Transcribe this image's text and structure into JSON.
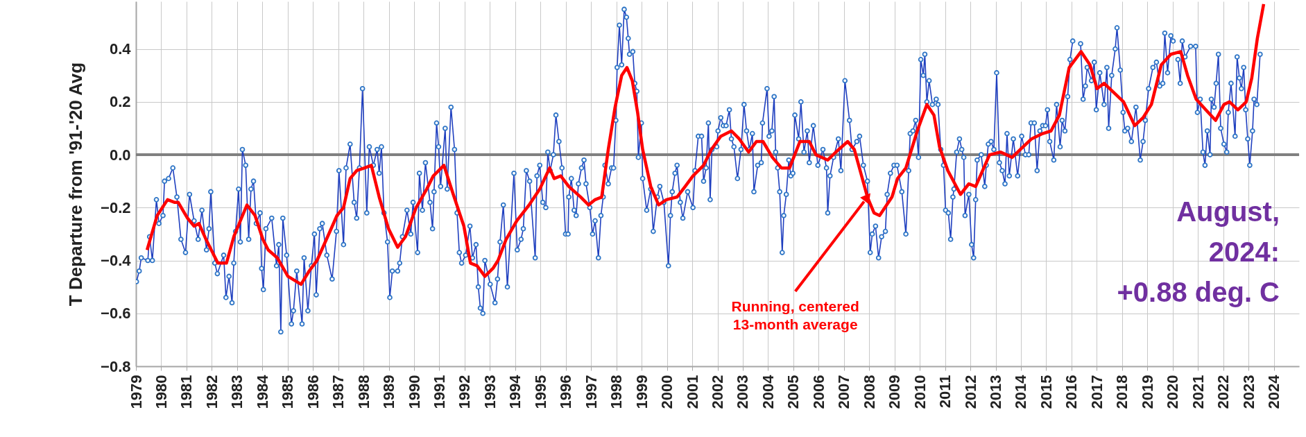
{
  "chart_data": {
    "type": "line",
    "ylabel": "T Departure from '91-'20 Avg",
    "xlim": [
      1979,
      2025
    ],
    "ylim": [
      -0.8,
      0.58
    ],
    "xticks": [
      1979,
      1980,
      1981,
      1982,
      1983,
      1984,
      1985,
      1986,
      1987,
      1988,
      1989,
      1990,
      1991,
      1992,
      1993,
      1994,
      1995,
      1996,
      1997,
      1998,
      1999,
      2000,
      2001,
      2002,
      2003,
      2004,
      2005,
      2006,
      2007,
      2008,
      2009,
      2010,
      2011,
      2012,
      2013,
      2014,
      2015,
      2016,
      2017,
      2018,
      2019,
      2020,
      2021,
      2022,
      2023,
      2024
    ],
    "yticks": [
      -0.8,
      -0.6,
      -0.4,
      -0.2,
      {
        "value": 0,
        "label": "0.0"
      },
      0.2,
      0.4
    ],
    "grid": true,
    "ref_lines": [
      {
        "axis": "y",
        "value": 0,
        "color": "#808080"
      }
    ],
    "annotations": [
      {
        "text": "Running, centered\n13-month average",
        "x": 2007.93,
        "y": -0.16
      },
      "August,\n2024:\n+0.88 deg. C"
    ],
    "series": [
      {
        "color": "#1f3fbf",
        "marker": "circle",
        "x": [
          1979.02,
          1979.13,
          1979.21,
          1979.47,
          1979.54,
          1979.65,
          1979.81,
          1979.91,
          1980.07,
          1980.13,
          1980.29,
          1980.46,
          1980.62,
          1980.78,
          1980.96,
          1981.12,
          1981.3,
          1981.46,
          1981.61,
          1981.79,
          1981.89,
          1981.96,
          1982.12,
          1982.22,
          1982.47,
          1982.56,
          1982.68,
          1982.8,
          1982.87,
          1982.94,
          1983.06,
          1983.13,
          1983.21,
          1983.34,
          1983.46,
          1983.55,
          1983.65,
          1983.76,
          1983.91,
          1983.97,
          1984.04,
          1984.14,
          1984.37,
          1984.56,
          1984.65,
          1984.73,
          1984.81,
          1984.96,
          1985.15,
          1985.23,
          1985.36,
          1985.57,
          1985.65,
          1985.8,
          1985.94,
          1986.06,
          1986.13,
          1986.27,
          1986.37,
          1986.55,
          1986.76,
          1986.93,
          1987.03,
          1987.21,
          1987.31,
          1987.47,
          1987.63,
          1987.73,
          1987.84,
          1987.96,
          1988.13,
          1988.23,
          1988.39,
          1988.54,
          1988.62,
          1988.71,
          1988.81,
          1988.95,
          1989.04,
          1989.14,
          1989.35,
          1989.43,
          1989.54,
          1989.72,
          1989.87,
          1989.96,
          1990.14,
          1990.21,
          1990.33,
          1990.45,
          1990.63,
          1990.73,
          1990.79,
          1990.89,
          1990.97,
          1991.05,
          1991.23,
          1991.31,
          1991.46,
          1991.6,
          1991.7,
          1991.79,
          1991.88,
          1992.04,
          1992.21,
          1992.31,
          1992.45,
          1992.54,
          1992.62,
          1992.72,
          1992.8,
          1993.01,
          1993.2,
          1993.3,
          1993.4,
          1993.53,
          1993.69,
          1993.95,
          1994.08,
          1994.23,
          1994.32,
          1994.44,
          1994.57,
          1994.79,
          1994.86,
          1994.97,
          1995.09,
          1995.21,
          1995.29,
          1995.38,
          1995.51,
          1995.61,
          1995.73,
          1995.85,
          1995.99,
          1996.09,
          1996.12,
          1996.22,
          1996.33,
          1996.41,
          1996.5,
          1996.62,
          1996.72,
          1996.8,
          1996.95,
          1997.06,
          1997.16,
          1997.29,
          1997.39,
          1997.48,
          1997.55,
          1997.68,
          1997.81,
          1997.89,
          1997.98,
          1998.03,
          1998.12,
          1998.21,
          1998.31,
          1998.4,
          1998.47,
          1998.52,
          1998.65,
          1998.73,
          1998.81,
          1998.87,
          1998.99,
          1999.04,
          1999.2,
          1999.36,
          1999.46,
          1999.62,
          1999.72,
          1999.88,
          2000.06,
          2000.14,
          2000.21,
          2000.32,
          2000.4,
          2000.53,
          2000.63,
          2000.82,
          2001.03,
          2001.11,
          2001.24,
          2001.37,
          2001.45,
          2001.55,
          2001.64,
          2001.71,
          2001.78,
          2001.97,
          2002.02,
          2002.13,
          2002.23,
          2002.34,
          2002.47,
          2002.55,
          2002.65,
          2002.79,
          2002.93,
          2003.05,
          2003.15,
          2003.26,
          2003.38,
          2003.44,
          2003.59,
          2003.73,
          2003.78,
          2003.96,
          2004.04,
          2004.15,
          2004.24,
          2004.3,
          2004.38,
          2004.46,
          2004.56,
          2004.62,
          2004.72,
          2004.82,
          2004.9,
          2004.98,
          2005.06,
          2005.21,
          2005.3,
          2005.42,
          2005.55,
          2005.63,
          2005.79,
          2005.97,
          2006.17,
          2006.31,
          2006.36,
          2006.45,
          2006.59,
          2006.78,
          2006.88,
          2007.04,
          2007.22,
          2007.32,
          2007.51,
          2007.62,
          2007.77,
          2007.93,
          2008.04,
          2008.12,
          2008.25,
          2008.37,
          2008.49,
          2008.64,
          2008.71,
          2008.84,
          2008.98,
          2009.1,
          2009.29,
          2009.45,
          2009.56,
          2009.62,
          2009.73,
          2009.84,
          2009.95,
          2010.04,
          2010.14,
          2010.2,
          2010.28,
          2010.37,
          2010.5,
          2010.65,
          2010.72,
          2010.83,
          2010.94,
          2011.02,
          2011.13,
          2011.22,
          2011.31,
          2011.35,
          2011.46,
          2011.57,
          2011.66,
          2011.74,
          2011.79,
          2011.94,
          2012.05,
          2012.13,
          2012.21,
          2012.27,
          2012.43,
          2012.57,
          2012.63,
          2012.71,
          2012.82,
          2012.93,
          2013.04,
          2013.15,
          2013.26,
          2013.37,
          2013.45,
          2013.54,
          2013.7,
          2013.87,
          2014.03,
          2014.18,
          2014.31,
          2014.4,
          2014.53,
          2014.64,
          2014.75,
          2014.86,
          2014.97,
          2015.05,
          2015.14,
          2015.3,
          2015.41,
          2015.55,
          2015.63,
          2015.74,
          2015.85,
          2015.94,
          2016.05,
          2016.2,
          2016.36,
          2016.46,
          2016.55,
          2016.62,
          2016.79,
          2016.9,
          2016.98,
          2017.12,
          2017.29,
          2017.4,
          2017.47,
          2017.59,
          2017.73,
          2017.8,
          2017.93,
          2018.04,
          2018.11,
          2018.22,
          2018.37,
          2018.55,
          2018.72,
          2018.83,
          2018.92,
          2019.05,
          2019.22,
          2019.36,
          2019.49,
          2019.61,
          2019.69,
          2019.8,
          2019.93,
          2020.02,
          2020.1,
          2020.21,
          2020.3,
          2020.38,
          2020.49,
          2020.71,
          2020.91,
          2020.98,
          2021.09,
          2021.2,
          2021.28,
          2021.37,
          2021.48,
          2021.53,
          2021.64,
          2021.72,
          2021.81,
          2021.9,
          2022.03,
          2022.14,
          2022.2,
          2022.31,
          2022.47,
          2022.55,
          2022.64,
          2022.72,
          2022.81,
          2022.89,
          2022.97,
          2023.05,
          2023.16,
          2023.22,
          2023.33,
          2023.46
        ],
        "values": [
          -0.48,
          -0.44,
          -0.39,
          -0.4,
          -0.31,
          -0.4,
          -0.17,
          -0.26,
          -0.23,
          -0.1,
          -0.09,
          -0.05,
          -0.16,
          -0.32,
          -0.37,
          -0.15,
          -0.25,
          -0.32,
          -0.21,
          -0.36,
          -0.28,
          -0.14,
          -0.41,
          -0.45,
          -0.38,
          -0.54,
          -0.46,
          -0.56,
          -0.41,
          -0.29,
          -0.13,
          -0.33,
          0.02,
          -0.04,
          -0.32,
          -0.13,
          -0.1,
          -0.26,
          -0.22,
          -0.43,
          -0.51,
          -0.28,
          -0.24,
          -0.42,
          -0.34,
          -0.67,
          -0.24,
          -0.38,
          -0.64,
          -0.59,
          -0.44,
          -0.64,
          -0.39,
          -0.59,
          -0.42,
          -0.3,
          -0.53,
          -0.28,
          -0.26,
          -0.38,
          -0.47,
          -0.29,
          -0.06,
          -0.34,
          -0.05,
          0.04,
          -0.18,
          -0.24,
          -0.05,
          0.25,
          -0.22,
          0.03,
          -0.04,
          0.02,
          -0.07,
          0.03,
          -0.22,
          -0.33,
          -0.54,
          -0.44,
          -0.44,
          -0.41,
          -0.31,
          -0.21,
          -0.3,
          -0.18,
          -0.37,
          -0.07,
          -0.21,
          -0.03,
          -0.18,
          -0.28,
          -0.14,
          0.12,
          0.03,
          -0.12,
          0.1,
          -0.13,
          0.18,
          0.02,
          -0.22,
          -0.37,
          -0.41,
          -0.38,
          -0.27,
          -0.39,
          -0.34,
          -0.5,
          -0.58,
          -0.6,
          -0.4,
          -0.49,
          -0.56,
          -0.47,
          -0.33,
          -0.19,
          -0.5,
          -0.07,
          -0.36,
          -0.32,
          -0.28,
          -0.06,
          -0.1,
          -0.39,
          -0.08,
          -0.04,
          -0.18,
          -0.2,
          0.01,
          -0.06,
          0.0,
          0.15,
          0.05,
          -0.05,
          -0.3,
          -0.3,
          -0.16,
          -0.09,
          -0.21,
          -0.23,
          -0.11,
          -0.05,
          -0.02,
          -0.11,
          -0.2,
          -0.3,
          -0.25,
          -0.39,
          -0.23,
          -0.16,
          -0.04,
          -0.11,
          -0.05,
          -0.05,
          0.13,
          0.33,
          0.49,
          0.34,
          0.55,
          0.52,
          0.44,
          0.38,
          0.39,
          0.27,
          0.24,
          -0.01,
          0.12,
          -0.09,
          -0.21,
          -0.13,
          -0.29,
          -0.16,
          -0.12,
          -0.18,
          -0.42,
          -0.23,
          -0.14,
          -0.07,
          -0.04,
          -0.18,
          -0.24,
          -0.14,
          -0.2,
          -0.06,
          0.07,
          0.07,
          -0.1,
          -0.05,
          0.12,
          -0.17,
          0.02,
          0.03,
          0.09,
          0.14,
          0.11,
          0.11,
          0.17,
          0.06,
          0.03,
          -0.09,
          0.02,
          0.19,
          0.09,
          0.02,
          0.08,
          -0.14,
          -0.04,
          -0.03,
          0.12,
          0.25,
          0.07,
          0.09,
          0.22,
          0.01,
          -0.05,
          -0.14,
          -0.37,
          -0.23,
          -0.15,
          -0.02,
          -0.08,
          -0.07,
          0.15,
          0.06,
          0.2,
          0.01,
          0.09,
          -0.03,
          0.11,
          -0.04,
          0.02,
          -0.05,
          -0.22,
          -0.08,
          -0.01,
          0.06,
          -0.06,
          0.28,
          0.13,
          0.02,
          0.05,
          0.07,
          -0.04,
          -0.1,
          -0.37,
          -0.3,
          -0.27,
          -0.39,
          -0.31,
          -0.29,
          -0.15,
          -0.07,
          -0.04,
          -0.04,
          -0.14,
          -0.3,
          -0.06,
          0.08,
          0.09,
          0.13,
          -0.01,
          0.36,
          0.3,
          0.38,
          0.2,
          0.28,
          0.19,
          0.21,
          0.19,
          0.02,
          -0.04,
          -0.21,
          -0.22,
          -0.32,
          -0.16,
          -0.13,
          0.01,
          0.06,
          0.02,
          -0.01,
          -0.23,
          -0.15,
          -0.34,
          -0.39,
          -0.17,
          -0.02,
          0.0,
          -0.12,
          -0.04,
          0.04,
          0.05,
          0.02,
          0.31,
          -0.03,
          -0.06,
          -0.11,
          0.08,
          -0.08,
          0.06,
          -0.08,
          0.07,
          0.0,
          0.0,
          0.12,
          0.12,
          -0.06,
          0.09,
          0.11,
          0.11,
          0.17,
          0.05,
          -0.02,
          0.19,
          0.03,
          0.13,
          0.09,
          0.22,
          0.36,
          0.43,
          null,
          0.42,
          0.21,
          0.26,
          0.33,
          0.28,
          0.35,
          0.17,
          0.31,
          0.19,
          0.33,
          0.1,
          0.3,
          0.4,
          0.48,
          0.32,
          0.16,
          0.09,
          0.1,
          0.05,
          0.18,
          -0.02,
          0.05,
          0.13,
          0.25,
          0.33,
          0.35,
          0.26,
          0.27,
          0.46,
          0.31,
          0.45,
          0.43,
          null,
          0.36,
          0.27,
          0.43,
          0.37,
          0.41,
          0.41,
          0.16,
          0.21,
          0.01,
          -0.04,
          0.09,
          0.0,
          0.21,
          0.18,
          0.27,
          0.38,
          0.1,
          0.04,
          0.01,
          0.16,
          0.27,
          0.07,
          0.37,
          0.29,
          0.25,
          0.33,
          0.17,
          0.06,
          -0.04,
          0.09,
          0.21,
          0.19,
          0.38
        ]
      },
      {
        "color": "#ff0000",
        "marker": "none",
        "x": [
          1979.44,
          1979.84,
          1980.25,
          1980.52,
          1980.67,
          1981.04,
          1981.3,
          1981.49,
          1981.77,
          1982.24,
          1982.58,
          1982.87,
          1983.39,
          1983.71,
          1984.02,
          1984.23,
          1984.59,
          1985.01,
          1985.53,
          1985.85,
          1986.16,
          1986.58,
          1986.95,
          1987.21,
          1987.47,
          1987.73,
          1988.04,
          1988.31,
          1988.62,
          1988.99,
          1989.35,
          1989.66,
          1990.08,
          1990.5,
          1990.76,
          1991.18,
          1991.55,
          1991.97,
          1992.23,
          1992.49,
          1992.8,
          1993.12,
          1993.32,
          1993.64,
          1994.06,
          1994.55,
          1994.97,
          1995.36,
          1995.54,
          1995.8,
          1996.12,
          1996.59,
          1996.9,
          1997.16,
          1997.42,
          1997.68,
          1997.95,
          1998.21,
          1998.42,
          1998.63,
          1998.84,
          1999.04,
          1999.36,
          1999.67,
          1999.98,
          2000.4,
          2000.72,
          2001.03,
          2001.45,
          2001.76,
          2002.13,
          2002.55,
          2002.86,
          2003.23,
          2003.54,
          2003.8,
          2004.17,
          2004.53,
          2004.85,
          2005.26,
          2005.63,
          2005.89,
          2006.36,
          2006.68,
          2007.15,
          2007.41,
          2007.67,
          2007.93,
          2008.19,
          2008.41,
          2008.9,
          2009.12,
          2009.45,
          2009.9,
          2010.28,
          2010.56,
          2010.78,
          2011.11,
          2011.61,
          2011.94,
          2012.21,
          2012.76,
          2013.2,
          2013.65,
          2013.98,
          2014.42,
          2014.86,
          2015.19,
          2015.52,
          2015.91,
          2016.38,
          2016.73,
          2017.01,
          2017.29,
          2017.73,
          2018.06,
          2018.5,
          2018.83,
          2019.16,
          2019.55,
          2019.93,
          2020.32,
          2020.59,
          2020.93,
          2021.31,
          2021.7,
          2022.03,
          2022.25,
          2022.58,
          2022.91,
          2023.13,
          2023.35,
          2023.6
        ],
        "values": [
          -0.36,
          -0.23,
          -0.17,
          -0.18,
          -0.18,
          -0.24,
          -0.27,
          -0.26,
          -0.32,
          -0.41,
          -0.41,
          -0.31,
          -0.19,
          -0.23,
          -0.32,
          -0.36,
          -0.39,
          -0.46,
          -0.49,
          -0.44,
          -0.4,
          -0.31,
          -0.23,
          -0.2,
          -0.09,
          -0.06,
          -0.05,
          -0.04,
          -0.16,
          -0.28,
          -0.35,
          -0.31,
          -0.2,
          -0.13,
          -0.08,
          -0.04,
          -0.15,
          -0.27,
          -0.41,
          -0.42,
          -0.46,
          -0.43,
          -0.4,
          -0.32,
          -0.25,
          -0.19,
          -0.13,
          -0.05,
          -0.09,
          -0.08,
          -0.12,
          -0.16,
          -0.19,
          -0.17,
          -0.16,
          0.02,
          0.18,
          0.3,
          0.33,
          0.28,
          0.16,
          0.02,
          -0.12,
          -0.19,
          -0.17,
          -0.16,
          -0.12,
          -0.08,
          -0.04,
          0.02,
          0.07,
          0.09,
          0.06,
          0.01,
          0.05,
          0.05,
          -0.01,
          -0.05,
          -0.05,
          0.05,
          0.05,
          0.0,
          -0.02,
          0.01,
          0.05,
          0.02,
          -0.07,
          -0.16,
          -0.22,
          -0.23,
          -0.16,
          -0.09,
          -0.05,
          0.09,
          0.19,
          0.15,
          0.03,
          -0.06,
          -0.15,
          -0.11,
          -0.12,
          0.0,
          0.01,
          -0.01,
          0.02,
          0.06,
          0.08,
          0.09,
          0.15,
          0.33,
          0.39,
          0.34,
          0.25,
          0.27,
          0.23,
          0.2,
          0.11,
          0.14,
          0.19,
          0.34,
          0.38,
          0.39,
          0.3,
          0.21,
          0.17,
          0.13,
          0.19,
          0.2,
          0.17,
          0.2,
          0.29,
          0.44,
          0.57
        ]
      }
    ]
  }
}
